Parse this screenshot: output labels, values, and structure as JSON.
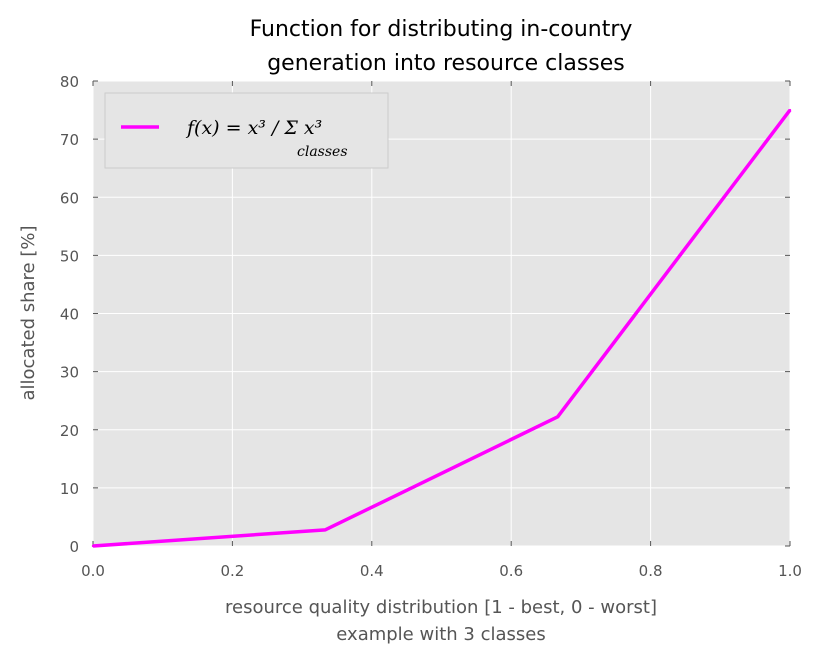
{
  "chart_data": {
    "type": "line",
    "title_lines": [
      "Function for distributing in-country",
      "generation into resource classes"
    ],
    "xlabel_lines": [
      "resource quality distribution [1 - best, 0 - worst]",
      "example with 3 classes"
    ],
    "ylabel": "allocated share [%]",
    "xlim": [
      0.0,
      1.0
    ],
    "ylim": [
      0,
      80
    ],
    "xticks": [
      0.0,
      0.2,
      0.4,
      0.6,
      0.8,
      1.0
    ],
    "xtick_labels": [
      "0.0",
      "0.2",
      "0.4",
      "0.6",
      "0.8",
      "1.0"
    ],
    "yticks": [
      0,
      10,
      20,
      30,
      40,
      50,
      60,
      70,
      80
    ],
    "ytick_labels": [
      "0",
      "10",
      "20",
      "30",
      "40",
      "50",
      "60",
      "70",
      "80"
    ],
    "grid": true,
    "legend_position": "top-left",
    "series": [
      {
        "name": "f(x) = x³ / Σ_classes x³",
        "color": "#ff00ff",
        "x": [
          0.0,
          0.3333,
          0.6667,
          1.0
        ],
        "y": [
          0.0,
          2.78,
          22.22,
          75.0
        ]
      }
    ],
    "legend": {
      "main": "f(x) = x³ / Σ x³",
      "subscript": "classes"
    },
    "colors": {
      "plot_background": "#e5e5e5",
      "grid": "#ffffff",
      "line": "#ff00ff"
    }
  }
}
